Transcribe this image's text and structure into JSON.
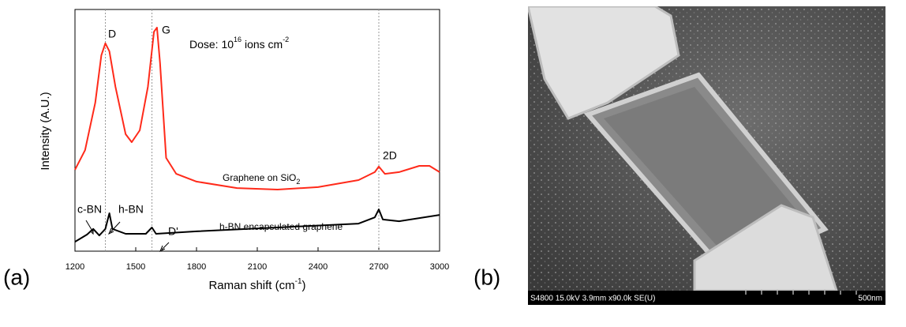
{
  "chart_data": {
    "type": "line",
    "panel_label": "(a)",
    "x_label": [
      "Raman shift (cm",
      "-1",
      ")"
    ],
    "y_label": "Intensity (A.U.)",
    "xlim": [
      1200,
      3000
    ],
    "xticks": [
      1200,
      1500,
      1800,
      2100,
      2400,
      2700,
      3000
    ],
    "ylim": [
      0,
      100
    ],
    "reference_lines": [
      1350,
      1580,
      2700
    ],
    "series": [
      {
        "color": "#ff2a1a",
        "x": [
          1200,
          1250,
          1300,
          1330,
          1350,
          1370,
          1400,
          1450,
          1480,
          1520,
          1560,
          1590,
          1605,
          1620,
          1650,
          1700,
          1800,
          2000,
          2200,
          2400,
          2600,
          2680,
          2700,
          2730,
          2800,
          2900,
          2950,
          3000
        ],
        "values": [
          33.7,
          41.8,
          61.4,
          81,
          86,
          82.7,
          68,
          48.4,
          45.1,
          50,
          68,
          90.8,
          92.5,
          77.8,
          38.6,
          32,
          28.8,
          26.1,
          25.5,
          26.5,
          29.4,
          32.7,
          35,
          32,
          32.7,
          35.3,
          35.3,
          32.7
        ]
      },
      {
        "color": "#000000",
        "x": [
          1200,
          1260,
          1290,
          1320,
          1350,
          1370,
          1385,
          1450,
          1550,
          1580,
          1600,
          1800,
          2200,
          2600,
          2680,
          2700,
          2720,
          2800,
          3000
        ],
        "values": [
          3.9,
          6.9,
          9.2,
          6.5,
          9.2,
          15.7,
          9.2,
          7.2,
          7.2,
          9.8,
          7.2,
          8.2,
          9.8,
          11.4,
          14,
          17.3,
          13.1,
          12.4,
          15
        ]
      }
    ],
    "annotations": {
      "d": "D",
      "g": "G",
      "two_d": "2D",
      "c_bn": "c-BN",
      "h_bn": "h-BN",
      "d_prime": "D'",
      "dose": [
        "Dose: 10",
        "16",
        " ions cm",
        "-2"
      ],
      "graphene_sio2": [
        "Graphene on SiO",
        "2"
      ],
      "hbn_graphene": "h-BN encapsulated graphene"
    }
  },
  "image_panel": {
    "panel_label": "(b)",
    "info_bar": "S4800 15.0kV 3.9mm x90.0k SE(U)",
    "scale_label": "500nm"
  }
}
